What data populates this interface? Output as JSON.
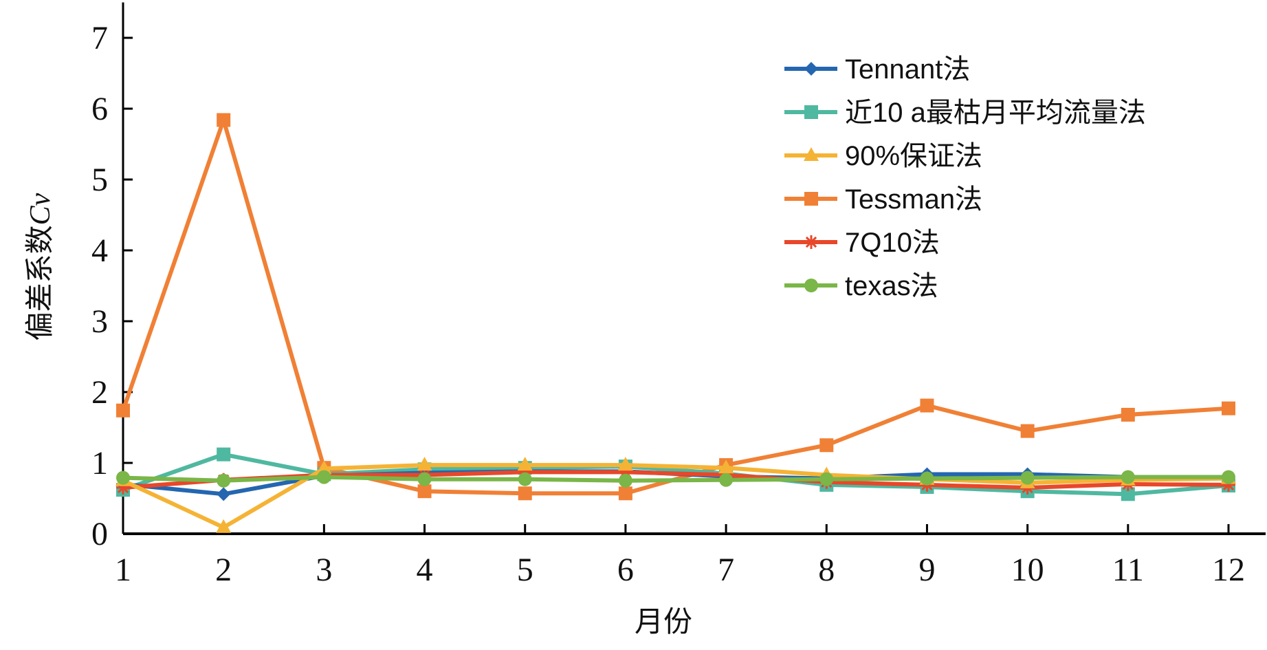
{
  "chart_data": {
    "type": "line",
    "title": "",
    "xlabel": "月份",
    "ylabel": "偏差系数",
    "ylabel_italic": "Cv",
    "x": [
      1,
      2,
      3,
      4,
      5,
      6,
      7,
      8,
      9,
      10,
      11,
      12
    ],
    "xticks": [
      "1",
      "2",
      "3",
      "4",
      "5",
      "6",
      "7",
      "8",
      "9",
      "10",
      "11",
      "12"
    ],
    "yticks": [
      "0",
      "1",
      "2",
      "3",
      "4",
      "5",
      "6",
      "7"
    ],
    "ylim": [
      0,
      7.5
    ],
    "xlim": [
      1,
      12.4
    ],
    "grid": false,
    "legend_position": "top-right",
    "series": [
      {
        "name": "Tennant法",
        "color": "#2466b0",
        "marker": "diamond",
        "values": [
          0.7,
          0.56,
          0.82,
          0.86,
          0.88,
          0.88,
          0.81,
          0.78,
          0.84,
          0.84,
          0.8,
          0.8
        ]
      },
      {
        "name": "近10 a最枯月平均流量法",
        "color": "#4fb8a0",
        "marker": "square",
        "values": [
          0.62,
          1.12,
          0.84,
          0.91,
          0.93,
          0.95,
          0.85,
          0.69,
          0.66,
          0.6,
          0.56,
          0.68
        ]
      },
      {
        "name": "90%保证法",
        "color": "#f5b335",
        "marker": "triangle",
        "values": [
          0.75,
          0.09,
          0.92,
          0.97,
          0.97,
          0.97,
          0.93,
          0.83,
          0.77,
          0.72,
          0.76,
          0.78
        ]
      },
      {
        "name": "Tessman法",
        "color": "#f08035",
        "marker": "square",
        "values": [
          1.74,
          5.84,
          0.93,
          0.6,
          0.57,
          0.57,
          0.97,
          1.25,
          1.81,
          1.45,
          1.68,
          1.77
        ]
      },
      {
        "name": "7Q10法",
        "color": "#e8472a",
        "marker": "star",
        "values": [
          0.65,
          0.76,
          0.83,
          0.83,
          0.87,
          0.87,
          0.83,
          0.73,
          0.69,
          0.65,
          0.7,
          0.69
        ]
      },
      {
        "name": "texas法",
        "color": "#7ab648",
        "marker": "circle",
        "values": [
          0.79,
          0.75,
          0.8,
          0.77,
          0.77,
          0.75,
          0.76,
          0.77,
          0.78,
          0.79,
          0.8,
          0.8
        ]
      }
    ]
  }
}
